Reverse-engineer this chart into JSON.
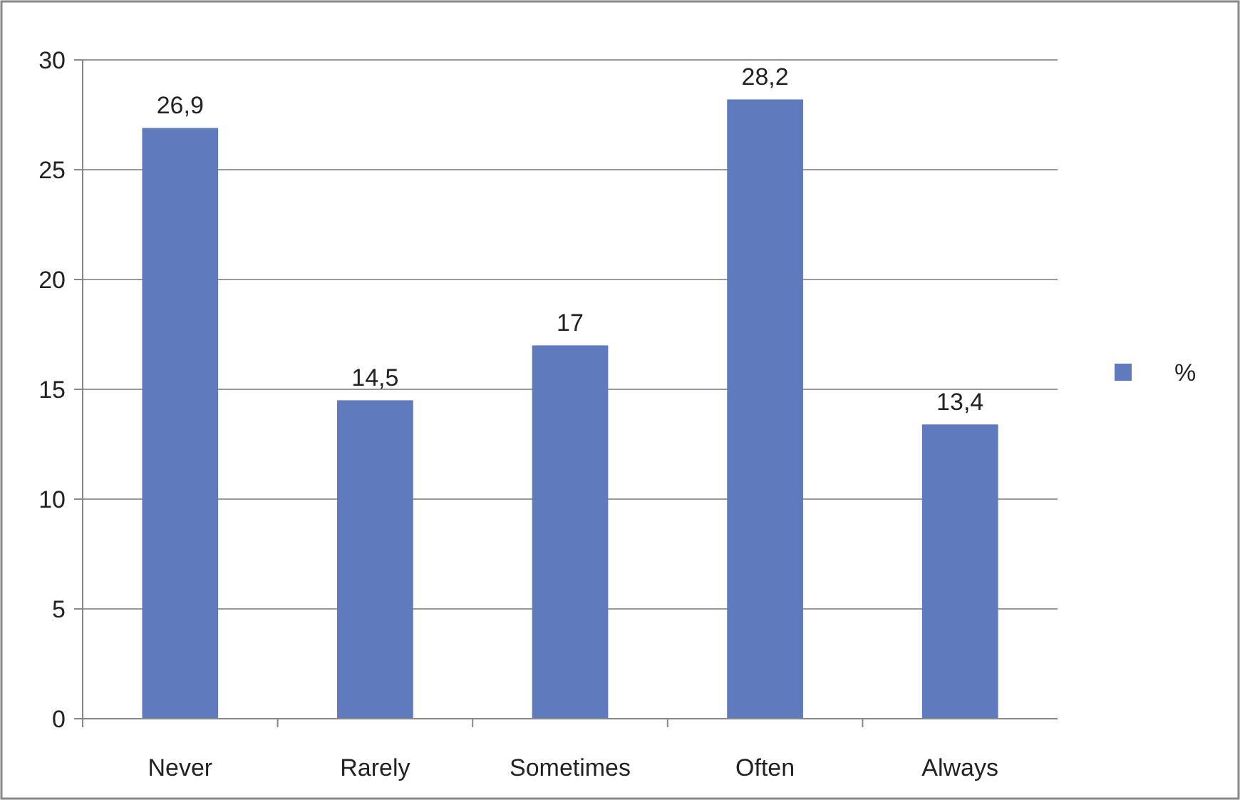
{
  "chart_data": {
    "type": "bar",
    "categories": [
      "Never",
      "Rarely",
      "Sometimes",
      "Often",
      "Always"
    ],
    "series": [
      {
        "name": "%",
        "color": "#5f7abd",
        "values": [
          26.9,
          14.5,
          17,
          28.2,
          13.4
        ],
        "value_labels": [
          "26,9",
          "14,5",
          "17",
          "28,2",
          "13,4"
        ]
      }
    ],
    "ylim": [
      0,
      30
    ],
    "yticks": [
      0,
      5,
      10,
      15,
      20,
      25,
      30
    ],
    "grid": "y",
    "legend": "right"
  }
}
